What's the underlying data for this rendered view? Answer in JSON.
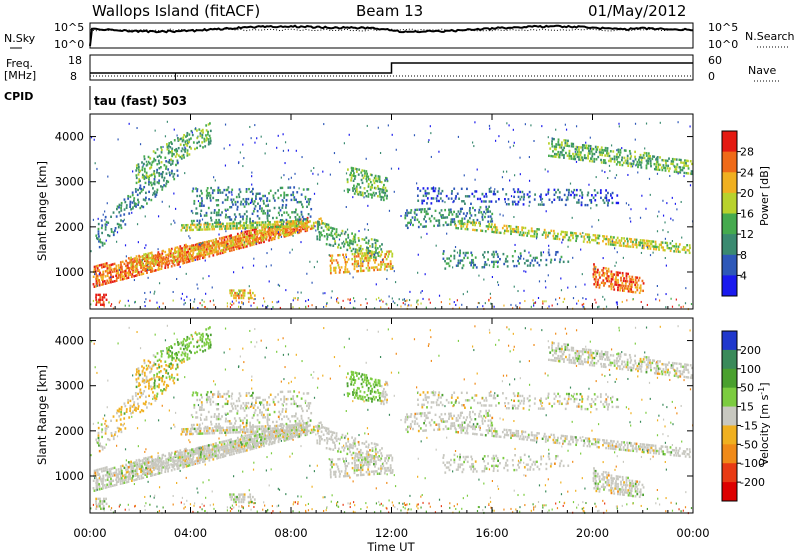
{
  "header": {
    "station": "Wallops Island (fitACF)",
    "beam": "Beam 13",
    "date": "01/May/2012"
  },
  "top_panel": {
    "left_label": "N.Sky",
    "right_label": "N.Search",
    "left_ticks": [
      "10^5",
      "10^0"
    ],
    "right_ticks": [
      "10^5",
      "10^0"
    ]
  },
  "freq_panel": {
    "left_label_line1": "Freq.",
    "left_label_line2": "[MHz]",
    "left_ticks": [
      "18",
      "8"
    ],
    "right_label": "Nave",
    "right_ticks": [
      "60",
      "0"
    ]
  },
  "cpid_panel": {
    "label": "CPID",
    "mode": "tau (fast) 503"
  },
  "chart_data": [
    {
      "type": "heatmap",
      "title": "",
      "ylabel": "Slant Range [km]",
      "xlabel": "",
      "ylim": [
        180,
        4500
      ],
      "y_ticks": [
        "1000",
        "2000",
        "3000",
        "4000"
      ],
      "colorbar": {
        "label": "Power [dB]",
        "ticks": [
          "4",
          "8",
          "12",
          "16",
          "20",
          "24",
          "28"
        ],
        "colors": [
          "#1a1aee",
          "#2e58b8",
          "#3a8a70",
          "#45aa4e",
          "#b8d22c",
          "#f0b020",
          "#ef6a18",
          "#e41a12"
        ]
      }
    },
    {
      "type": "heatmap",
      "title": "",
      "ylabel": "Slant Range [km]",
      "xlabel": "Time UT",
      "ylim": [
        180,
        4500
      ],
      "y_ticks": [
        "1000",
        "2000",
        "3000",
        "4000"
      ],
      "x_ticks": [
        "00:00",
        "04:00",
        "08:00",
        "12:00",
        "16:00",
        "20:00",
        "00:00"
      ],
      "colorbar": {
        "label_main": "Velocity [m s",
        "label_sup": "-1",
        "label_end": "]",
        "ticks": [
          "200",
          "100",
          "50",
          "15",
          "-15",
          "-50",
          "-100",
          "-200"
        ],
        "colors": [
          "#2038cc",
          "#3a8a5a",
          "#4aa02e",
          "#7ccc40",
          "#c8c8c0",
          "#f0b020",
          "#f08a18",
          "#e83a14",
          "#dd0000"
        ]
      }
    }
  ],
  "x_axis": {
    "label": "Time UT",
    "ticks": [
      "00:00",
      "04:00",
      "08:00",
      "12:00",
      "16:00",
      "20:00",
      "00:00"
    ]
  }
}
